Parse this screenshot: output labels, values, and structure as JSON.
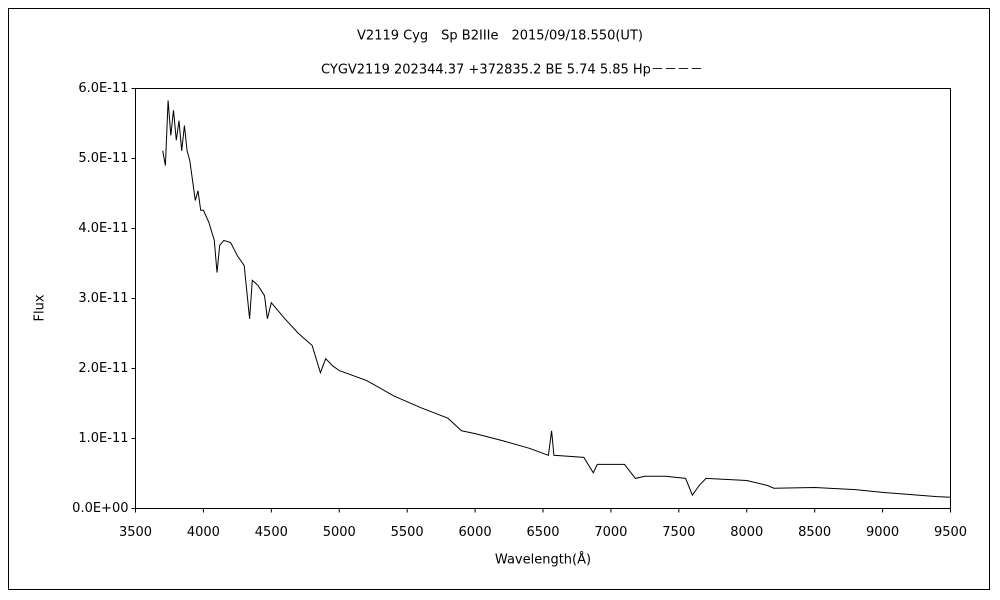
{
  "chart_data": {
    "type": "line",
    "title": "V2119 Cyg　Sp B2IIIe　2015/09/18.550(UT)",
    "subtitle": "CYGV2119 202344.37 +372835.2 BE 5.74 5.85 Hp－－－－",
    "x_label": "Wavelength(Å)",
    "y_label": "Flux",
    "color": "#000000",
    "x": [
      3700,
      3720,
      3740,
      3760,
      3780,
      3800,
      3820,
      3840,
      3860,
      3880,
      3900,
      3940,
      3960,
      3980,
      4000,
      4040,
      4080,
      4100,
      4120,
      4150,
      4200,
      4250,
      4300,
      4340,
      4360,
      4400,
      4450,
      4471,
      4500,
      4600,
      4700,
      4800,
      4861,
      4900,
      4950,
      5000,
      5200,
      5400,
      5600,
      5800,
      5900,
      6000,
      6200,
      6400,
      6540,
      6563,
      6580,
      6800,
      6870,
      6900,
      7100,
      7180,
      7250,
      7400,
      7550,
      7600,
      7650,
      7700,
      8000,
      8150,
      8200,
      8500,
      8800,
      9000,
      9200,
      9400,
      9500
    ],
    "values": [
      5.11e-11,
      4.9e-11,
      5.83e-11,
      5.33e-11,
      5.69e-11,
      5.26e-11,
      5.54e-11,
      5.11e-11,
      5.47e-11,
      5.11e-11,
      4.97e-11,
      4.4e-11,
      4.54e-11,
      4.26e-11,
      4.26e-11,
      4.09e-11,
      3.83e-11,
      3.37e-11,
      3.76e-11,
      3.83e-11,
      3.8e-11,
      3.61e-11,
      3.47e-11,
      2.71e-11,
      3.26e-11,
      3.19e-11,
      3.04e-11,
      2.71e-11,
      2.94e-11,
      2.71e-11,
      2.5e-11,
      2.33e-11,
      1.94e-11,
      2.14e-11,
      2.04e-11,
      1.97e-11,
      1.83e-11,
      1.61e-11,
      1.44e-11,
      1.29e-11,
      1.11e-11,
      1.07e-11,
      9.7e-12,
      8.6e-12,
      7.6e-12,
      1.11e-11,
      7.6e-12,
      7.3e-12,
      5.1e-12,
      6.3e-12,
      6.3e-12,
      4.3e-12,
      4.6e-12,
      4.6e-12,
      4.3e-12,
      1.9e-12,
      3.3e-12,
      4.3e-12,
      4e-12,
      3.3e-12,
      2.9e-12,
      3e-12,
      2.7e-12,
      2.3e-12,
      2e-12,
      1.7e-12,
      1.6e-12
    ],
    "xlim": [
      3500,
      9500
    ],
    "xticks": [
      3500,
      4000,
      4500,
      5000,
      5500,
      6000,
      6500,
      7000,
      7500,
      8000,
      8500,
      9000,
      9500
    ],
    "ylim": [
      0,
      6e-11
    ],
    "yticks": [
      {
        "value": 0,
        "label": "0.0E+00"
      },
      {
        "value": 1e-11,
        "label": "1.0E-11"
      },
      {
        "value": 2e-11,
        "label": "2.0E-11"
      },
      {
        "value": 3e-11,
        "label": "3.0E-11"
      },
      {
        "value": 4e-11,
        "label": "4.0E-11"
      },
      {
        "value": 5e-11,
        "label": "5.0E-11"
      },
      {
        "value": 6e-11,
        "label": "6.0E-11"
      }
    ]
  }
}
